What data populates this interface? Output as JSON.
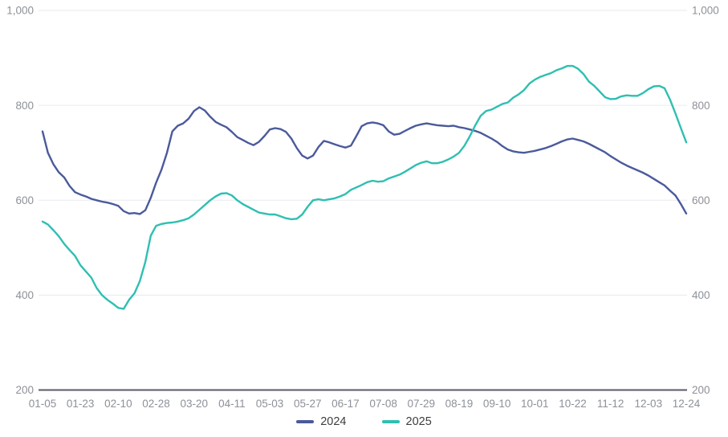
{
  "chart_data": {
    "type": "line",
    "title": "",
    "xlabel": "",
    "ylabel": "",
    "ylim": [
      200,
      1000
    ],
    "grid": true,
    "legend_position": "bottom-center",
    "y_ticks": [
      200,
      400,
      600,
      800,
      1000
    ],
    "y_tick_labels": [
      "200",
      "400",
      "600",
      "800",
      "1,000"
    ],
    "y_axis_sides": [
      "left",
      "right"
    ],
    "x_tick_labels": [
      "01-05",
      "01-23",
      "02-10",
      "02-28",
      "03-20",
      "04-11",
      "05-03",
      "05-27",
      "06-17",
      "07-08",
      "07-29",
      "08-19",
      "09-10",
      "10-01",
      "10-22",
      "11-12",
      "12-03",
      "12-24"
    ],
    "points_per_tick": 7,
    "series": [
      {
        "name": "2024",
        "color": "#4a5a9b",
        "values": [
          745,
          700,
          676,
          659,
          648,
          630,
          617,
          612,
          608,
          603,
          600,
          597,
          595,
          592,
          588,
          577,
          572,
          573,
          571,
          579,
          605,
          637,
          665,
          700,
          745,
          757,
          762,
          772,
          788,
          796,
          789,
          776,
          765,
          759,
          754,
          744,
          733,
          727,
          721,
          716,
          723,
          735,
          749,
          752,
          750,
          744,
          730,
          710,
          694,
          688,
          694,
          712,
          725,
          722,
          718,
          714,
          711,
          715,
          735,
          756,
          762,
          764,
          762,
          758,
          745,
          738,
          740,
          746,
          752,
          757,
          760,
          762,
          760,
          758,
          757,
          756,
          757,
          754,
          752,
          749,
          746,
          742,
          736,
          730,
          723,
          714,
          707,
          703,
          701,
          700,
          702,
          704,
          707,
          710,
          714,
          719,
          724,
          728,
          730,
          727,
          724,
          719,
          713,
          707,
          701,
          693,
          686,
          679,
          673,
          668,
          663,
          658,
          652,
          645,
          638,
          631,
          620,
          610,
          592,
          572
        ]
      },
      {
        "name": "2025",
        "color": "#2fbfb1",
        "values": [
          555,
          549,
          537,
          524,
          508,
          495,
          483,
          463,
          450,
          437,
          415,
          400,
          390,
          382,
          373,
          371,
          390,
          404,
          430,
          470,
          525,
          546,
          550,
          552,
          553,
          555,
          558,
          562,
          570,
          580,
          590,
          600,
          608,
          614,
          615,
          610,
          600,
          592,
          586,
          580,
          574,
          572,
          570,
          570,
          566,
          562,
          560,
          561,
          570,
          586,
          600,
          602,
          600,
          602,
          604,
          608,
          613,
          622,
          627,
          632,
          638,
          641,
          639,
          640,
          646,
          650,
          654,
          660,
          667,
          674,
          679,
          682,
          678,
          678,
          681,
          686,
          692,
          700,
          715,
          735,
          758,
          778,
          788,
          791,
          797,
          803,
          806,
          816,
          823,
          832,
          846,
          854,
          860,
          864,
          868,
          874,
          878,
          883,
          883,
          877,
          866,
          850,
          841,
          829,
          817,
          813,
          814,
          819,
          821,
          820,
          820,
          826,
          834,
          840,
          841,
          836,
          812,
          783,
          752,
          722
        ]
      }
    ]
  },
  "legend": {
    "items": [
      {
        "label": "2024",
        "color": "#4a5a9b"
      },
      {
        "label": "2025",
        "color": "#2fbfb1"
      }
    ]
  },
  "colors": {
    "background": "#ffffff",
    "gridline": "#e9eaef",
    "x_axis_line": "#585a6a",
    "tick_text": "#8d9198",
    "legend_text": "#3c3d42",
    "series_2024": "#4a5a9b",
    "series_2025": "#2fbfb1"
  }
}
